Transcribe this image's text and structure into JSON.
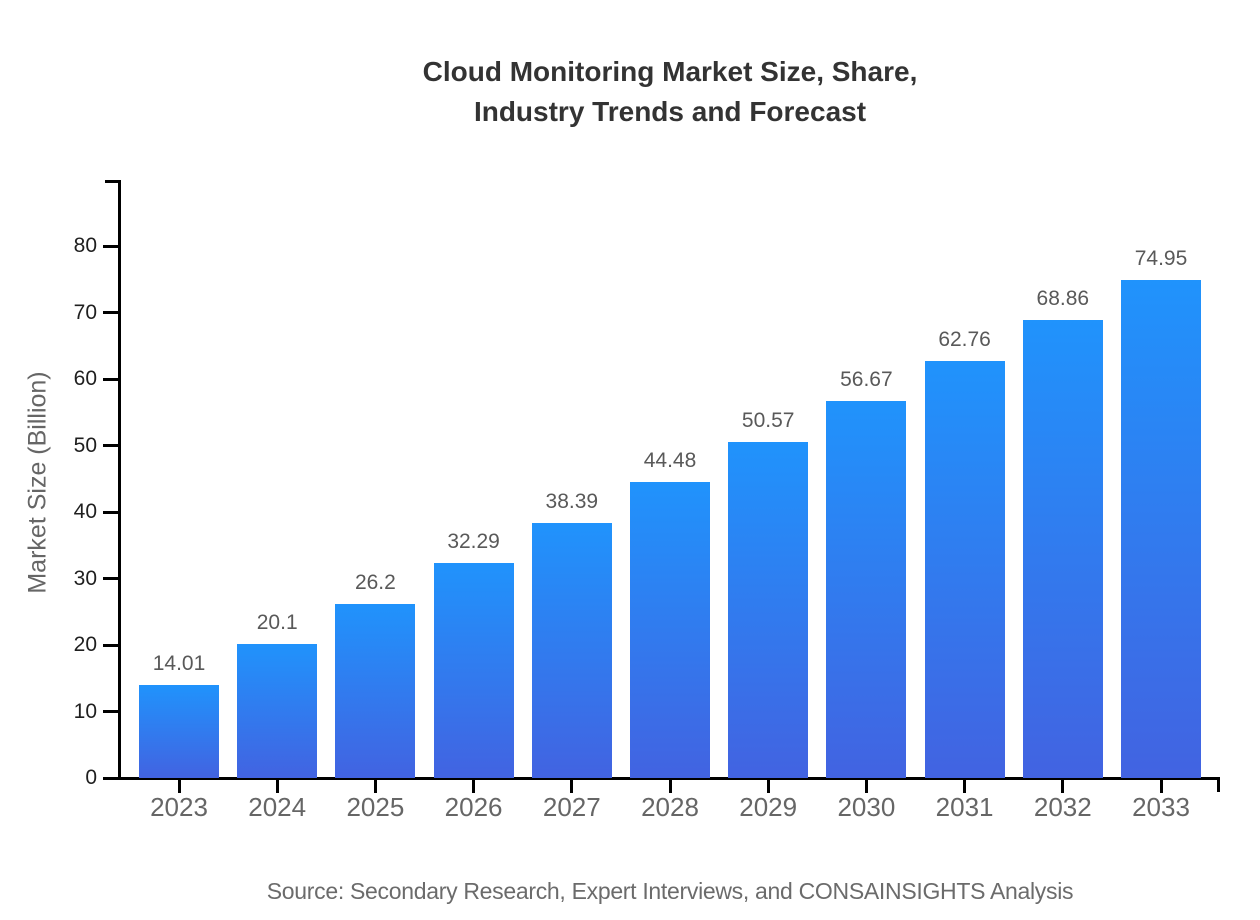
{
  "title": {
    "line1": "Cloud Monitoring Market Size, Share,",
    "line2": "Industry Trends and Forecast"
  },
  "y_axis": {
    "label": "Market Size (Billion)"
  },
  "source": "Source: Secondary Research, Expert Interviews, and CONSAINSIGHTS Analysis",
  "colors": {
    "bar_gradient_top": "#2093fc",
    "bar_gradient_bottom": "#4263e1",
    "axis": "#000000",
    "title_text": "#333333",
    "y_tick_text": "#1f1f1f",
    "x_tick_text": "#666666",
    "value_label_text": "#595959",
    "source_text": "#6b6b6b",
    "background": "#ffffff"
  },
  "chart_data": {
    "type": "bar",
    "title": "Cloud Monitoring Market Size, Share, Industry Trends and Forecast",
    "categories": [
      "2023",
      "2024",
      "2025",
      "2026",
      "2027",
      "2028",
      "2029",
      "2030",
      "2031",
      "2032",
      "2033"
    ],
    "values": [
      14.01,
      20.1,
      26.2,
      32.29,
      38.39,
      44.48,
      50.57,
      56.67,
      62.76,
      68.86,
      74.95
    ],
    "xlabel": "",
    "ylabel": "Market Size (Billion)",
    "ylim": [
      0,
      90
    ],
    "y_ticks": [
      0,
      10,
      20,
      30,
      40,
      50,
      60,
      70,
      80
    ],
    "grid": false,
    "legend_position": "none",
    "value_labels_shown": true,
    "bar_gradient": [
      "#2093fc",
      "#4263e1"
    ]
  }
}
